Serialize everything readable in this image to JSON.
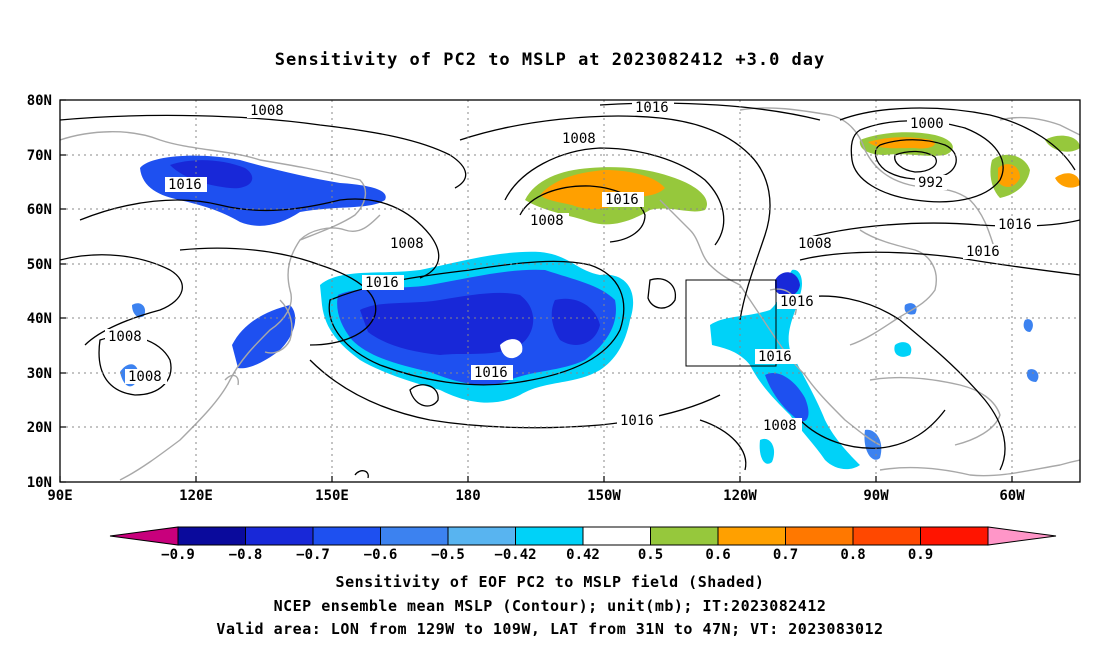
{
  "title": "Sensitivity of PC2 to MSLP at 2023082412 +3.0 day",
  "axes": {
    "lat_labels": [
      "80N",
      "70N",
      "60N",
      "50N",
      "40N",
      "30N",
      "20N",
      "10N"
    ],
    "lon_labels": [
      "90E",
      "120E",
      "150E",
      "180",
      "150W",
      "120W",
      "90W",
      "60W"
    ]
  },
  "contour_labels": [
    "1008",
    "1016",
    "1008",
    "1016",
    "1008",
    "1016",
    "1008",
    "1008",
    "1016",
    "1016",
    "1016",
    "1016",
    "1008",
    "1000",
    "992",
    "1008",
    "1016",
    "1016",
    "1016",
    "1016",
    "1008"
  ],
  "colorbar": {
    "colors": [
      "#c8007c",
      "#0a0a9c",
      "#1828d8",
      "#1e50f0",
      "#3c82f0",
      "#58b4f0",
      "#00d2f8",
      "#ffffff",
      "#96c83c",
      "#ffa000",
      "#ff7800",
      "#ff4800",
      "#ff1400",
      "#ff96c8"
    ],
    "tick_labels": [
      "-0.9",
      "-0.8",
      "-0.7",
      "-0.6",
      "-0.5",
      "-0.42",
      "0.42",
      "0.5",
      "0.6",
      "0.7",
      "0.8",
      "0.9"
    ]
  },
  "captions": {
    "line1": "Sensitivity of EOF PC2 to MSLP field (Shaded)",
    "line2": "NCEP ensemble mean MSLP (Contour); unit(mb); IT:2023082412",
    "line3": "Valid area: LON from 129W to 109W, LAT from 31N to 47N; VT: 2023083012"
  },
  "valid_area": {
    "lon_from": "129W",
    "lon_to": "109W",
    "lat_from": "31N",
    "lat_to": "47N"
  }
}
